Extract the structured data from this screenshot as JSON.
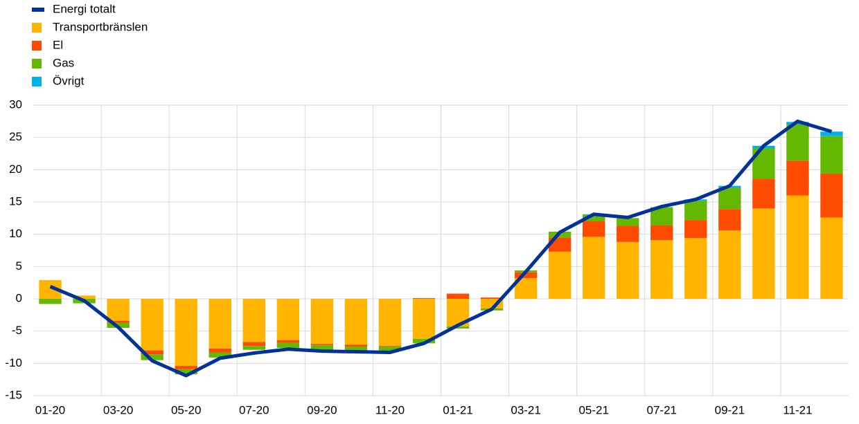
{
  "chart_data": {
    "type": "bar",
    "stacked": true,
    "categories": [
      "01-20",
      null,
      "03-20",
      null,
      "05-20",
      null,
      "07-20",
      null,
      "09-20",
      null,
      "11-20",
      null,
      "01-21",
      null,
      "03-21",
      null,
      "05-21",
      null,
      "07-21",
      null,
      "09-21",
      null,
      "11-21",
      null
    ],
    "series": [
      {
        "name": "Energi totalt",
        "type": "line",
        "color": "#003299",
        "values": [
          1.9,
          -0.3,
          -4.4,
          -9.6,
          -11.9,
          -9.2,
          -8.4,
          -7.8,
          -8.1,
          -8.2,
          -8.3,
          -6.9,
          -4.1,
          -1.6,
          4.2,
          10.3,
          13.1,
          12.6,
          14.3,
          15.4,
          17.5,
          23.7,
          27.5,
          25.9
        ]
      },
      {
        "name": "Transportbränslen",
        "type": "bar",
        "color": "#ffb400",
        "values": [
          2.9,
          0.5,
          -3.4,
          -8.0,
          -10.4,
          -7.7,
          -6.7,
          -6.4,
          -7.0,
          -7.1,
          -7.3,
          -6.2,
          -4.3,
          -1.5,
          3.2,
          7.3,
          9.6,
          8.8,
          9.1,
          9.4,
          10.6,
          14.0,
          16.0,
          12.6
        ]
      },
      {
        "name": "El",
        "type": "bar",
        "color": "#ff4b00",
        "values": [
          0,
          0,
          -0.3,
          -0.6,
          -0.5,
          -0.6,
          -0.6,
          -0.4,
          -0.2,
          -0.3,
          -0.1,
          0.1,
          0.8,
          0.2,
          0.9,
          2.2,
          2.4,
          2.5,
          2.3,
          2.8,
          3.3,
          4.6,
          5.4,
          6.8
        ]
      },
      {
        "name": "Gas",
        "type": "bar",
        "color": "#65b800",
        "values": [
          -0.8,
          -0.7,
          -0.8,
          -0.9,
          -0.8,
          -0.8,
          -0.6,
          -0.8,
          -0.7,
          -0.7,
          -0.7,
          -0.7,
          -0.3,
          -0.3,
          0.3,
          0.9,
          1.0,
          1.2,
          2.8,
          3.0,
          3.3,
          4.7,
          5.6,
          5.8
        ]
      },
      {
        "name": "Övrigt",
        "type": "bar",
        "color": "#00b1ea",
        "values": [
          0,
          0,
          0,
          0,
          0,
          0,
          0,
          0,
          0,
          0,
          0,
          0,
          0,
          0,
          0,
          0,
          0.1,
          0,
          0,
          0.2,
          0.3,
          0.4,
          0.4,
          0.7
        ]
      }
    ],
    "ylim": [
      -15,
      30
    ],
    "yticks": [
      30,
      25,
      20,
      15,
      10,
      5,
      0,
      -5,
      -10,
      -15
    ],
    "grid": true,
    "legend": "top-left"
  }
}
